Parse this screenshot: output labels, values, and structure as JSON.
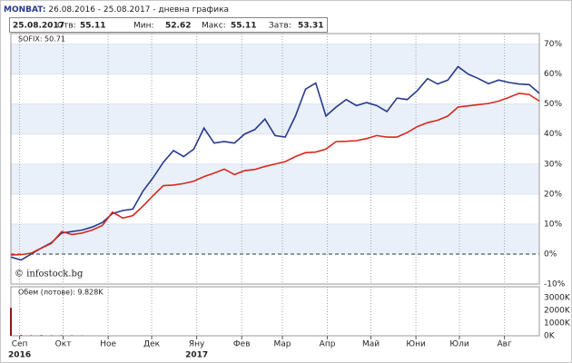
{
  "header": {
    "symbol": "MONBAT:",
    "period": "26.08.2016 - 25.08.2017 - дневна графика",
    "date": "25.08.2017",
    "stats": [
      {
        "label": "Отв:",
        "value": 55.11
      },
      {
        "label": "Мин:",
        "value": 52.62
      },
      {
        "label": "Макс:",
        "value": 55.11
      },
      {
        "label": "Затв:",
        "value": 53.31
      }
    ]
  },
  "chart_data": [
    {
      "type": "line",
      "watermark": "© infostock.bg",
      "x": [
        "2016-08-26",
        "2016-09-02",
        "2016-09-09",
        "2016-09-16",
        "2016-09-23",
        "2016-09-30",
        "2016-10-07",
        "2016-10-14",
        "2016-10-21",
        "2016-10-28",
        "2016-11-04",
        "2016-11-11",
        "2016-11-18",
        "2016-11-25",
        "2016-12-02",
        "2016-12-09",
        "2016-12-16",
        "2016-12-23",
        "2016-12-30",
        "2017-01-06",
        "2017-01-13",
        "2017-01-20",
        "2017-01-27",
        "2017-02-03",
        "2017-02-10",
        "2017-02-17",
        "2017-02-24",
        "2017-03-03",
        "2017-03-10",
        "2017-03-17",
        "2017-03-24",
        "2017-03-31",
        "2017-04-07",
        "2017-04-14",
        "2017-04-21",
        "2017-04-28",
        "2017-05-05",
        "2017-05-12",
        "2017-05-19",
        "2017-05-26",
        "2017-06-02",
        "2017-06-09",
        "2017-06-16",
        "2017-06-23",
        "2017-06-30",
        "2017-07-07",
        "2017-07-14",
        "2017-07-21",
        "2017-07-28",
        "2017-08-04",
        "2017-08-11",
        "2017-08-18",
        "2017-08-25"
      ],
      "series": [
        {
          "color": "#27398c",
          "values": [
            -1.0,
            -2.0,
            0.0,
            2.0,
            3.8,
            7.0,
            7.5,
            8.0,
            9.0,
            10.5,
            13.5,
            14.5,
            15.0,
            21.0,
            25.5,
            30.6,
            34.5,
            32.5,
            35.0,
            42.0,
            37.0,
            37.5,
            37.0,
            40.0,
            41.5,
            45.0,
            39.5,
            39.0,
            46.0,
            55.0,
            57.0,
            46.0,
            49.0,
            51.5,
            49.5,
            50.5,
            49.5,
            47.5,
            52.0,
            51.5,
            54.5,
            58.5,
            56.7,
            58.0,
            62.5,
            60.0,
            58.5,
            56.8,
            58.0,
            57.2,
            56.7,
            56.5,
            53.6
          ]
        },
        {
          "name": "SOFIX: 50.71",
          "color": "#d8281e",
          "values": [
            -0.3,
            -0.2,
            0.3,
            2.0,
            3.6,
            7.5,
            6.5,
            7.0,
            8.0,
            9.5,
            14.0,
            12.0,
            12.8,
            16.0,
            19.5,
            22.8,
            23.0,
            23.5,
            24.3,
            25.8,
            27.0,
            28.3,
            26.5,
            27.8,
            28.2,
            29.2,
            30.0,
            30.8,
            32.5,
            33.8,
            34.0,
            35.0,
            37.5,
            37.6,
            37.8,
            38.5,
            39.5,
            39.0,
            39.0,
            40.5,
            42.5,
            43.8,
            44.6,
            46.0,
            49.0,
            49.4,
            49.8,
            50.2,
            51.0,
            52.2,
            53.6,
            53.2,
            51.0
          ]
        }
      ],
      "xlim": [
        "2016-08-26",
        "2017-08-25"
      ],
      "xticks": [
        {
          "value": "2016-09-01",
          "label": "Сеп",
          "sublabel": "2016"
        },
        {
          "value": "2016-10-01",
          "label": "Окт"
        },
        {
          "value": "2016-11-01",
          "label": "Ное"
        },
        {
          "value": "2016-12-01",
          "label": "Дек"
        },
        {
          "value": "2017-01-01",
          "label": "Яну",
          "sublabel": "2017"
        },
        {
          "value": "2017-02-01",
          "label": "Фев"
        },
        {
          "value": "2017-03-01",
          "label": "Мар"
        },
        {
          "value": "2017-04-01",
          "label": "Апр"
        },
        {
          "value": "2017-05-01",
          "label": "Май"
        },
        {
          "value": "2017-06-01",
          "label": "Юни"
        },
        {
          "value": "2017-07-01",
          "label": "Юли"
        },
        {
          "value": "2017-08-01",
          "label": "Авг"
        }
      ],
      "ylim": [
        -10,
        73.5
      ],
      "yticks": [
        {
          "value": 70,
          "label": "70%"
        },
        {
          "value": 60,
          "label": "60%"
        },
        {
          "value": 50,
          "label": "50%"
        },
        {
          "value": 40,
          "label": "40%"
        },
        {
          "value": 30,
          "label": "30%"
        },
        {
          "value": 20,
          "label": "20%"
        },
        {
          "value": 10,
          "label": "10%"
        },
        {
          "value": 0,
          "label": "0%"
        },
        {
          "value": -10,
          "label": "-10%"
        }
      ],
      "grid": true
    },
    {
      "type": "bar",
      "title": "Обем (лотове): 9.828K",
      "color": "#8b1a1a",
      "x": [
        "2016-08-26",
        "2016-09-02",
        "2016-09-09",
        "2016-09-16",
        "2016-09-23",
        "2016-09-30",
        "2016-10-07",
        "2016-10-14"
      ],
      "values": [
        2200,
        60,
        40,
        50,
        30,
        40,
        30,
        20
      ],
      "ylim": [
        0,
        3850
      ],
      "yticks": [
        {
          "value": 3000,
          "label": "3000K"
        },
        {
          "value": 2000,
          "label": "2000K"
        },
        {
          "value": 1000,
          "label": "1000K"
        },
        {
          "value": 0,
          "label": "0K"
        }
      ]
    }
  ]
}
